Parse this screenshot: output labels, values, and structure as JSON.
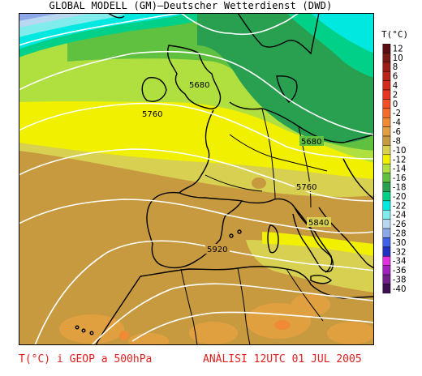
{
  "header": {
    "title": "GLOBAL MODELL (GM)—Deutscher Wetterdienst (DWD)"
  },
  "legend": {
    "title": "T(°C)",
    "levels": [
      {
        "value": "12",
        "color": "#5a0f14"
      },
      {
        "value": "10",
        "color": "#7a1a14"
      },
      {
        "value": "8",
        "color": "#9a1e16"
      },
      {
        "value": "6",
        "color": "#b82418"
      },
      {
        "value": "4",
        "color": "#d42a1c"
      },
      {
        "value": "2",
        "color": "#e83624"
      },
      {
        "value": "0",
        "color": "#f25028"
      },
      {
        "value": "-2",
        "color": "#f36c2c"
      },
      {
        "value": "-4",
        "color": "#f08a34"
      },
      {
        "value": "-6",
        "color": "#e0a040"
      },
      {
        "value": "-8",
        "color": "#c89a40"
      },
      {
        "value": "-10",
        "color": "#d8d050"
      },
      {
        "value": "-12",
        "color": "#f0f000"
      },
      {
        "value": "-14",
        "color": "#b0e040"
      },
      {
        "value": "-16",
        "color": "#60c040"
      },
      {
        "value": "-18",
        "color": "#28a050"
      },
      {
        "value": "-20",
        "color": "#00d088"
      },
      {
        "value": "-22",
        "color": "#00e8e0"
      },
      {
        "value": "-24",
        "color": "#80ecec"
      },
      {
        "value": "-26",
        "color": "#b8d8f0"
      },
      {
        "value": "-28",
        "color": "#8ca8e8"
      },
      {
        "value": "-30",
        "color": "#4060e8"
      },
      {
        "value": "-32",
        "color": "#2030c0"
      },
      {
        "value": "-34",
        "color": "#e030e0"
      },
      {
        "value": "-36",
        "color": "#a020c0"
      },
      {
        "value": "-38",
        "color": "#702088"
      },
      {
        "value": "-40",
        "color": "#3c1050"
      }
    ]
  },
  "map": {
    "contour_labels": [
      "5680",
      "5760",
      "5680",
      "5760",
      "5840",
      "5920"
    ]
  },
  "footer": {
    "left": "T(°C) i GEOP a 500hPa",
    "right": "ANÀLISI 12UTC 01 JUL 2005"
  }
}
